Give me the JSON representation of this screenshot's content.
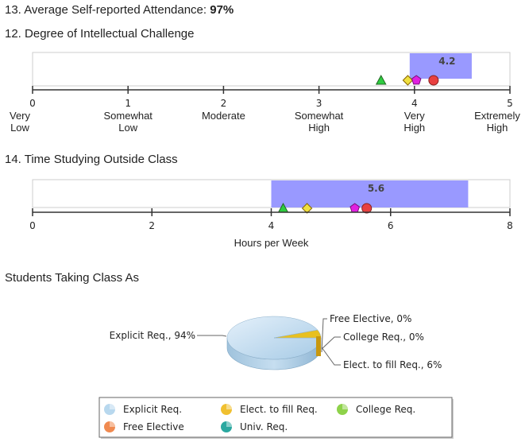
{
  "attendance": {
    "label": "13. Average Self-reported Attendance:",
    "value": "97%"
  },
  "section_title": "Students Taking Class As",
  "chart_data": [
    {
      "type": "bar",
      "title": "12. Degree of Intellectual Challenge",
      "xlim": [
        0,
        5
      ],
      "bar": {
        "start": 3.95,
        "end": 4.6,
        "label": "4.2"
      },
      "markers": [
        {
          "shape": "triangle",
          "value": 3.65,
          "color": "#2ecc40"
        },
        {
          "shape": "diamond",
          "value": 3.93,
          "color": "#f0e040"
        },
        {
          "shape": "pentagon",
          "value": 4.02,
          "color": "#e020e0"
        },
        {
          "shape": "circle",
          "value": 4.2,
          "color": "#e84040"
        }
      ],
      "ticks": [
        {
          "value": 0,
          "num": "0",
          "lines": [
            "Very",
            "Low"
          ]
        },
        {
          "value": 1,
          "num": "1",
          "lines": [
            "Somewhat",
            "Low"
          ]
        },
        {
          "value": 2,
          "num": "2",
          "lines": [
            "Moderate"
          ]
        },
        {
          "value": 3,
          "num": "3",
          "lines": [
            "Somewhat",
            "High"
          ]
        },
        {
          "value": 4,
          "num": "4",
          "lines": [
            "Very",
            "High"
          ]
        },
        {
          "value": 5,
          "num": "5",
          "lines": [
            "Extremely",
            "High"
          ]
        }
      ]
    },
    {
      "type": "bar",
      "title": "14. Time Studying Outside Class",
      "xlabel": "Hours per Week",
      "xlim": [
        0,
        8
      ],
      "bar": {
        "start": 4.0,
        "end": 7.3,
        "label": "5.6"
      },
      "markers": [
        {
          "shape": "triangle",
          "value": 4.2,
          "color": "#2ecc40"
        },
        {
          "shape": "diamond",
          "value": 4.6,
          "color": "#f0e040"
        },
        {
          "shape": "pentagon",
          "value": 5.4,
          "color": "#e020e0"
        },
        {
          "shape": "circle",
          "value": 5.6,
          "color": "#e84040"
        }
      ],
      "ticks": [
        {
          "value": 0,
          "num": "0"
        },
        {
          "value": 2,
          "num": "2"
        },
        {
          "value": 4,
          "num": "4"
        },
        {
          "value": 6,
          "num": "6"
        },
        {
          "value": 8,
          "num": "8"
        }
      ]
    },
    {
      "type": "pie",
      "slices": [
        {
          "label": "Explicit Req., 94%",
          "value": 94,
          "color": "#b8d8ee"
        },
        {
          "label": "Elect. to fill Req., 6%",
          "value": 6,
          "color": "#e8c020"
        },
        {
          "label": "College Req., 0%",
          "value": 0,
          "color": "#8ed24a"
        },
        {
          "label": "Free Elective, 0%",
          "value": 0,
          "color": "#f09050"
        }
      ],
      "legend": [
        {
          "label": "Explicit Req.",
          "color": "#b8d8ee"
        },
        {
          "label": "Elect. to fill Req.",
          "color": "#f0c030"
        },
        {
          "label": "College Req.",
          "color": "#8ed24a"
        },
        {
          "label": "Free Elective",
          "color": "#f08a50"
        },
        {
          "label": "Univ. Req.",
          "color": "#2aa8a0"
        }
      ]
    }
  ]
}
